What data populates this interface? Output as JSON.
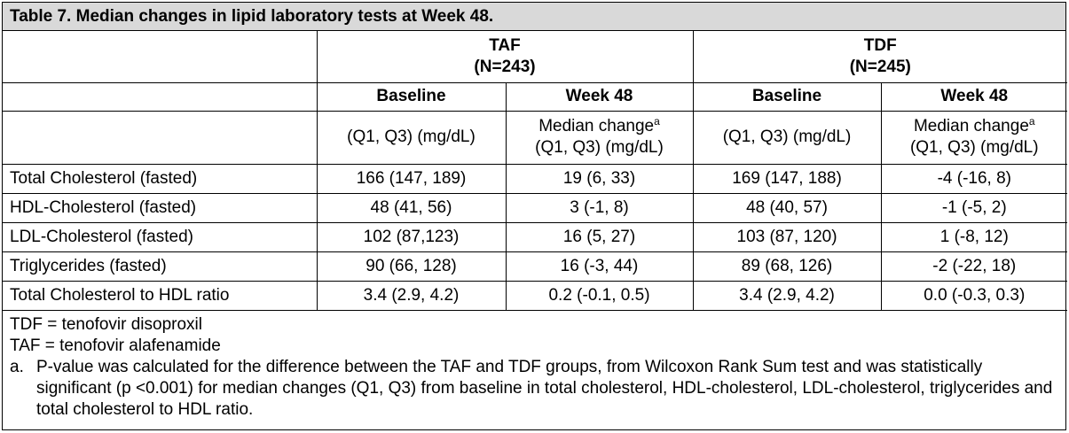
{
  "title": "Table 7. Median changes in lipid laboratory tests at Week 48.",
  "groups": [
    {
      "name": "TAF",
      "n": "(N=243)"
    },
    {
      "name": "TDF",
      "n": "(N=245)"
    }
  ],
  "subheaders": [
    "Baseline",
    "Week 48",
    "Baseline",
    "Week 48"
  ],
  "units": {
    "baseline": "(Q1, Q3) (mg/dL)",
    "change_line1": "Median change",
    "change_sup": "a",
    "change_line2": "(Q1, Q3) (mg/dL)"
  },
  "rows": [
    {
      "label": "Total Cholesterol (fasted)",
      "cells": [
        "166 (147, 189)",
        "19 (6, 33)",
        "169 (147, 188)",
        "-4 (-16, 8)"
      ]
    },
    {
      "label": "HDL-Cholesterol (fasted)",
      "cells": [
        "48 (41, 56)",
        "3 (-1, 8)",
        "48 (40, 57)",
        "-1 (-5, 2)"
      ]
    },
    {
      "label": "LDL-Cholesterol (fasted)",
      "cells": [
        "102 (87,123)",
        "16 (5, 27)",
        "103 (87, 120)",
        "1 (-8, 12)"
      ]
    },
    {
      "label": "Triglycerides (fasted)",
      "cells": [
        "90 (66, 128)",
        "16 (-3, 44)",
        "89 (68, 126)",
        "-2 (-22, 18)"
      ]
    },
    {
      "label": "Total Cholesterol to HDL ratio",
      "cells": [
        "3.4 (2.9, 4.2)",
        "0.2 (-0.1, 0.5)",
        "3.4 (2.9, 4.2)",
        "0.0 (-0.3, 0.3)"
      ]
    }
  ],
  "notes": {
    "tdf": "TDF = tenofovir disoproxil",
    "taf": "TAF = tenofovir alafenamide",
    "footnote_marker": "a.",
    "footnote_text": "P-value was calculated for the difference between the TAF and TDF groups, from Wilcoxon Rank Sum test and was statistically significant (p <0.001) for median changes (Q1, Q3) from baseline in total cholesterol, HDL-cholesterol, LDL-cholesterol, triglycerides and total cholesterol to HDL ratio."
  }
}
